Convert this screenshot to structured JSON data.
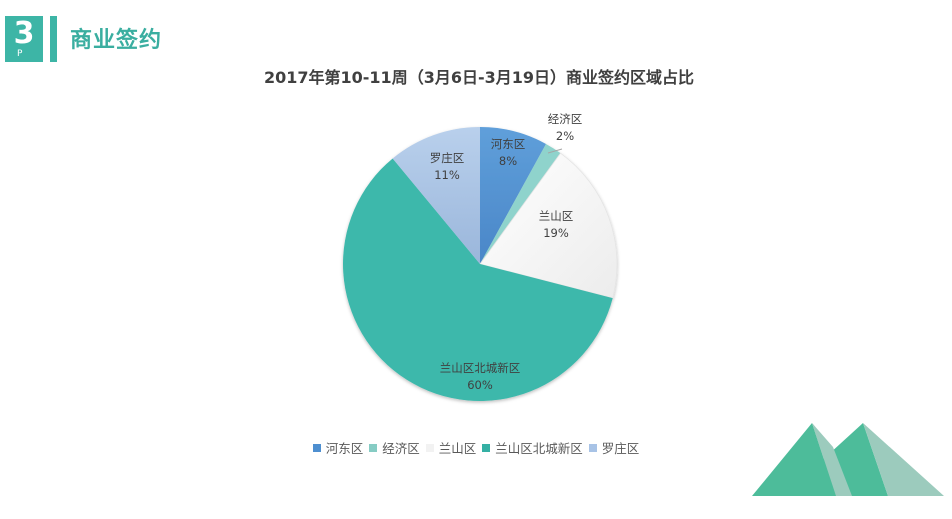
{
  "header": {
    "badge_number": "3",
    "badge_sub": "P",
    "section_title": "商业签约",
    "accent_color": "#3db5a6"
  },
  "chart_data": {
    "type": "pie",
    "title": "2017年第10-11周（3月6日-3月19日）商业签约区域占比",
    "categories": [
      "河东区",
      "经济区",
      "兰山区",
      "兰山区北城新区",
      "罗庄区"
    ],
    "values": [
      8,
      2,
      19,
      60,
      11
    ],
    "unit": "%",
    "data_labels": [
      "8%",
      "2%",
      "19%",
      "60%",
      "11%"
    ],
    "colors": [
      "#5b9bd5",
      "#8fd3cc",
      "#ffffff",
      "#3cb8ab",
      "#aec6e6"
    ],
    "start_angle": "12 o'clock, clockwise",
    "legend_position": "bottom"
  },
  "legend": {
    "items": [
      {
        "label": "河东区",
        "color": "#4e8fd0"
      },
      {
        "label": "经济区",
        "color": "#86ccc4"
      },
      {
        "label": "兰山区",
        "color": "#f2f2f2"
      },
      {
        "label": "兰山区北城新区",
        "color": "#35b0a4"
      },
      {
        "label": "罗庄区",
        "color": "#a8c3e6"
      }
    ]
  },
  "decoration": {
    "mountain_color_dark": "#4dbc9a",
    "mountain_color_light": "#9ccbbd"
  }
}
